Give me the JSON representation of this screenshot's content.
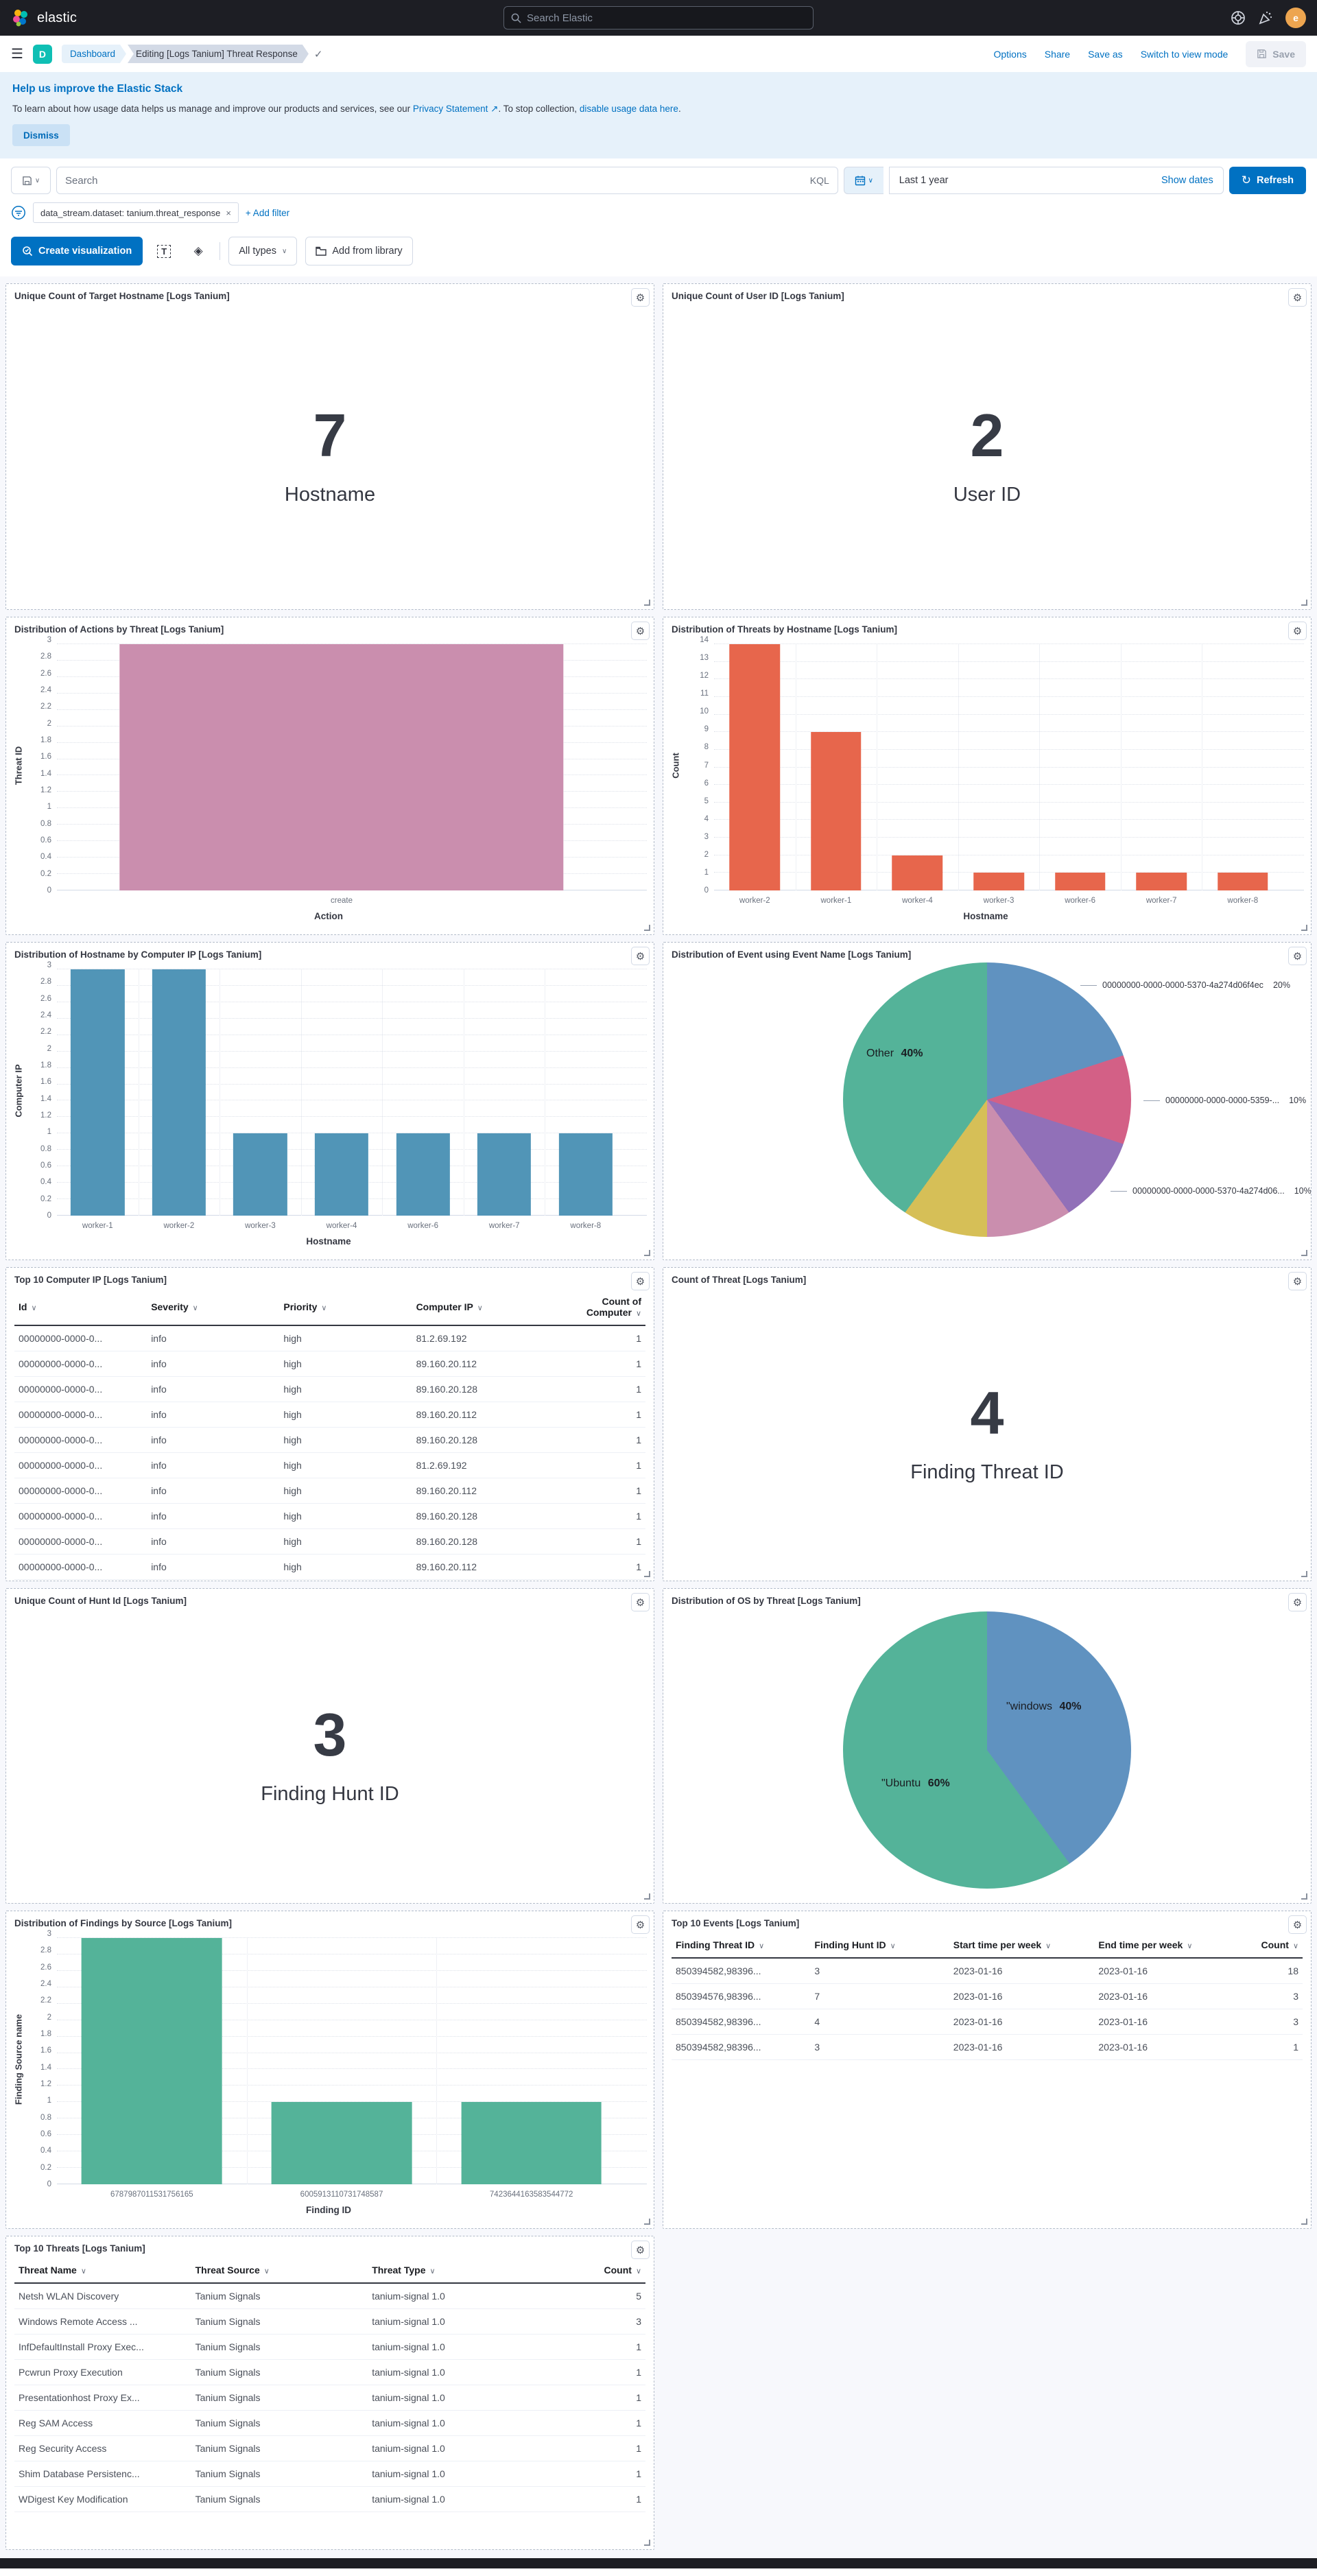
{
  "icons": {
    "menu": "☰",
    "gear": "⚙",
    "check": "✓",
    "close": "×",
    "refresh": "↻",
    "chevron": "∨",
    "sort": "∨",
    "map": "◈",
    "text_tool": "T",
    "ext_link": "↗"
  },
  "navbar": {
    "brand": "elastic",
    "search_placeholder": "Search Elastic",
    "avatar_initial": "e"
  },
  "crumbbar": {
    "app_initial": "D",
    "crumb_dashboard": "Dashboard",
    "crumb_current": "Editing [Logs Tanium] Threat Response",
    "actions": {
      "options": "Options",
      "share": "Share",
      "save_as": "Save as",
      "switch": "Switch to view mode",
      "save": "Save"
    }
  },
  "banner": {
    "title": "Help us improve the Elastic Stack",
    "body_prefix": "To learn about how usage data helps us manage and improve our products and services, see our ",
    "privacy_link": "Privacy Statement",
    "body_mid": ". To stop collection, ",
    "disable_link": "disable usage data here",
    "body_suffix": ".",
    "dismiss": "Dismiss"
  },
  "querybar": {
    "search_placeholder": "Search",
    "kql": "KQL",
    "time_value": "Last 1 year",
    "show_dates": "Show dates",
    "refresh": "Refresh"
  },
  "filterbar": {
    "pill": "data_stream.dataset: tanium.threat_response",
    "add_filter": "+ Add filter"
  },
  "toolbar": {
    "create_viz": "Create visualization",
    "all_types": "All types",
    "add_from_library": "Add from library"
  },
  "colors": {
    "primary": "#0071c2",
    "bar_mauve": "#CA8EAE",
    "bar_orange": "#E7664C",
    "bar_blue": "#5195B7",
    "bar_green": "#54B399",
    "pie_blue": "#6092C0",
    "pie_pink": "#D36086",
    "pie_purple": "#9170B8",
    "pie_mauve": "#CA8EAE",
    "pie_yellow": "#D6BF57",
    "pie_green": "#54B399"
  },
  "chart_data": [
    {
      "type": "metric",
      "title": "Unique Count of Target Hostname [Logs Tanium]",
      "value": "7",
      "label": "Hostname"
    },
    {
      "type": "metric",
      "title": "Unique Count of User ID [Logs Tanium]",
      "value": "2",
      "label": "User ID"
    },
    {
      "type": "bar",
      "title": "Distribution of Actions by Threat [Logs Tanium]",
      "categories": [
        "create"
      ],
      "values": [
        3
      ],
      "xlabel": "Action",
      "ylabel": "Threat ID",
      "ylim": [
        0,
        3
      ],
      "ystep": 0.2,
      "color": "#CA8EAE",
      "barw": 0.78,
      "grid": true,
      "legend": "none"
    },
    {
      "type": "bar",
      "title": "Distribution of Threats by Hostname [Logs Tanium]",
      "categories": [
        "worker-2",
        "worker-1",
        "worker-4",
        "worker-3",
        "worker-6",
        "worker-7",
        "worker-8"
      ],
      "values": [
        14,
        9,
        2,
        1,
        1,
        1,
        1
      ],
      "xlabel": "Hostname",
      "ylabel": "Count",
      "ylim": [
        0,
        14
      ],
      "ystep": 1,
      "color": "#E7664C",
      "barw": 0.62,
      "grid": true,
      "legend": "none"
    },
    {
      "type": "bar",
      "title": "Distribution of Hostname by Computer IP [Logs Tanium]",
      "categories": [
        "worker-1",
        "worker-2",
        "worker-3",
        "worker-4",
        "worker-6",
        "worker-7",
        "worker-8"
      ],
      "values": [
        3,
        3,
        1,
        1,
        1,
        1,
        1
      ],
      "xlabel": "Hostname",
      "ylabel": "Computer IP",
      "ylim": [
        0,
        3
      ],
      "ystep": 0.2,
      "color": "#5195B7",
      "barw": 0.66,
      "grid": true,
      "legend": "none"
    },
    {
      "type": "pie",
      "title": "Distribution of Event using Event Name [Logs Tanium]",
      "legend": "none",
      "slices": [
        {
          "label": "00000000-0000-0000-5370-4a274d06f4ec",
          "pct": 20,
          "color": "#6092C0"
        },
        {
          "label": "00000000-0000-0000-5359-...",
          "pct": 10,
          "color": "#D36086"
        },
        {
          "label": "00000000-0000-0000-5370-4a274d06...",
          "pct": 10,
          "color": "#9170B8"
        },
        {
          "label": "",
          "pct": 10,
          "color": "#CA8EAE"
        },
        {
          "label": "",
          "pct": 10,
          "color": "#D6BF57"
        },
        {
          "label": "Other",
          "pct": 40,
          "color": "#54B399"
        }
      ],
      "callouts": [
        {
          "text": "00000000-0000-0000-5370-4a274d06f4ec",
          "pct": "20%"
        },
        {
          "text": "00000000-0000-0000-5359-...",
          "pct": "10%"
        },
        {
          "text": "00000000-0000-0000-5370-4a274d06...",
          "pct": "10%"
        }
      ],
      "inner_labels": [
        {
          "text": "Other",
          "pct": "40%"
        }
      ]
    },
    {
      "type": "table",
      "title": "Top 10 Computer IP [Logs Tanium]",
      "columns": [
        "Id",
        "Severity",
        "Priority",
        "Computer IP",
        "Count of Computer"
      ],
      "col_widths": [
        "21%",
        "21%",
        "21%",
        "22%",
        "15%"
      ],
      "rows": [
        [
          "00000000-0000-0...",
          "info",
          "high",
          "81.2.69.192",
          "1"
        ],
        [
          "00000000-0000-0...",
          "info",
          "high",
          "89.160.20.112",
          "1"
        ],
        [
          "00000000-0000-0...",
          "info",
          "high",
          "89.160.20.128",
          "1"
        ],
        [
          "00000000-0000-0...",
          "info",
          "high",
          "89.160.20.112",
          "1"
        ],
        [
          "00000000-0000-0...",
          "info",
          "high",
          "89.160.20.128",
          "1"
        ],
        [
          "00000000-0000-0...",
          "info",
          "high",
          "81.2.69.192",
          "1"
        ],
        [
          "00000000-0000-0...",
          "info",
          "high",
          "89.160.20.112",
          "1"
        ],
        [
          "00000000-0000-0...",
          "info",
          "high",
          "89.160.20.128",
          "1"
        ],
        [
          "00000000-0000-0...",
          "info",
          "high",
          "89.160.20.128",
          "1"
        ],
        [
          "00000000-0000-0...",
          "info",
          "high",
          "89.160.20.112",
          "1"
        ]
      ]
    },
    {
      "type": "metric",
      "title": "Count of Threat [Logs Tanium]",
      "value": "4",
      "label": "Finding Threat ID"
    },
    {
      "type": "metric",
      "title": "Unique Count of Hunt Id [Logs Tanium]",
      "value": "3",
      "label": "Finding Hunt ID"
    },
    {
      "type": "pie",
      "title": "Distribution of OS by Threat [Logs Tanium]",
      "legend": "none",
      "slices": [
        {
          "label": "\"windows",
          "pct": 40,
          "color": "#6092C0"
        },
        {
          "label": "\"Ubuntu",
          "pct": 60,
          "color": "#54B399"
        }
      ],
      "callouts": [],
      "inner_labels": [
        {
          "text": "\"windows",
          "pct": "40%"
        },
        {
          "text": "\"Ubuntu",
          "pct": "60%"
        }
      ]
    },
    {
      "type": "bar",
      "title": "Distribution of Findings by Source [Logs Tanium]",
      "categories": [
        "6787987011531756165",
        "6005913110731748587",
        "7423644163583544772"
      ],
      "values": [
        3,
        1,
        1
      ],
      "xlabel": "Finding ID",
      "ylabel": "Finding Source name",
      "ylim": [
        0,
        3
      ],
      "ystep": 0.2,
      "color": "#54B399",
      "barw": 0.74,
      "grid": true,
      "legend": "none"
    },
    {
      "type": "table",
      "title": "Top 10 Events [Logs Tanium]",
      "columns": [
        "Finding Threat ID",
        "Finding Hunt ID",
        "Start time per week",
        "End time per week",
        "Count"
      ],
      "col_widths": [
        "22%",
        "22%",
        "23%",
        "22%",
        "11%"
      ],
      "rows": [
        [
          "850394582,98396...",
          "3",
          "2023-01-16",
          "2023-01-16",
          "18"
        ],
        [
          "850394576,98396...",
          "7",
          "2023-01-16",
          "2023-01-16",
          "3"
        ],
        [
          "850394582,98396...",
          "4",
          "2023-01-16",
          "2023-01-16",
          "3"
        ],
        [
          "850394582,98396...",
          "3",
          "2023-01-16",
          "2023-01-16",
          "1"
        ]
      ]
    },
    {
      "type": "table",
      "title": "Top 10 Threats [Logs Tanium]",
      "columns": [
        "Threat Name",
        "Threat Source",
        "Threat Type",
        "Count"
      ],
      "col_widths": [
        "28%",
        "28%",
        "28%",
        "16%"
      ],
      "rows": [
        [
          "Netsh WLAN Discovery",
          "Tanium Signals",
          "tanium-signal 1.0",
          "5"
        ],
        [
          "Windows Remote Access ...",
          "Tanium Signals",
          "tanium-signal 1.0",
          "3"
        ],
        [
          "InfDefaultInstall Proxy Exec...",
          "Tanium Signals",
          "tanium-signal 1.0",
          "1"
        ],
        [
          "Pcwrun Proxy Execution",
          "Tanium Signals",
          "tanium-signal 1.0",
          "1"
        ],
        [
          "Presentationhost Proxy Ex...",
          "Tanium Signals",
          "tanium-signal 1.0",
          "1"
        ],
        [
          "Reg SAM Access",
          "Tanium Signals",
          "tanium-signal 1.0",
          "1"
        ],
        [
          "Reg Security Access",
          "Tanium Signals",
          "tanium-signal 1.0",
          "1"
        ],
        [
          "Shim Database Persistenc...",
          "Tanium Signals",
          "tanium-signal 1.0",
          "1"
        ],
        [
          "WDigest Key Modification",
          "Tanium Signals",
          "tanium-signal 1.0",
          "1"
        ]
      ]
    }
  ]
}
